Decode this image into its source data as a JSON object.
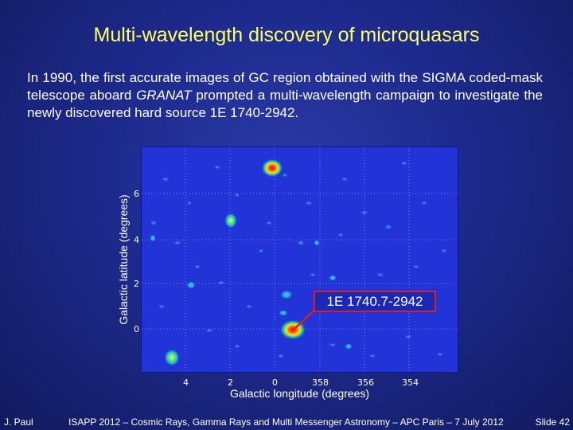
{
  "slide": {
    "title": "Multi-wavelength discovery of microquasars",
    "intro_before": "In 1990, the first accurate images of GC region obtained  with the SIGMA coded-mask telescope aboard ",
    "intro_italic": "GRANAT",
    "intro_after": " prompted a multi-wavelength campaign to investigate the newly discovered hard source 1E 1740-2942."
  },
  "figure": {
    "xlabel": "Galactic longitude (degrees)",
    "ylabel": "Galactic latitude (degrees)",
    "x_ticks": [
      4,
      2,
      0,
      358,
      356,
      354
    ],
    "y_ticks": [
      6,
      4,
      2,
      0
    ],
    "source_label": "1E 1740.7-2942",
    "colors": {
      "background": "#2233d8",
      "bright_core": "#cc1111",
      "mid": "#ffdd22",
      "halo": "#22cc99"
    }
  },
  "footer": {
    "author": "J. Paul",
    "conference": "ISAPP 2012 – Cosmic Rays, Gamma Rays and Multi Messenger Astronomy  – APC Paris – 7 July 2012",
    "slide_number": "Slide 42"
  }
}
